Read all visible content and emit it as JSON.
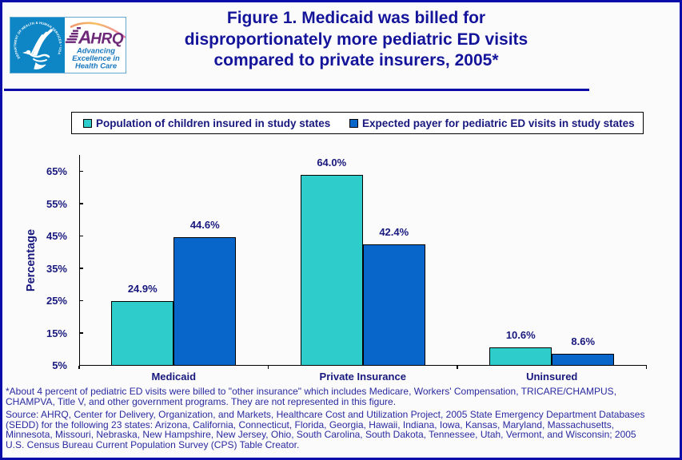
{
  "page": {
    "background": "#fbfbfb",
    "border_color": "#0b0baa",
    "text_navy": "#18187e"
  },
  "header": {
    "title_lines": [
      "Figure 1. Medicaid was billed for",
      "disproportionately more pediatric ED visits",
      "compared to private insurers, 2005*"
    ],
    "logo": {
      "seal_ring_text": "DEPARTMENT OF HEALTH & HUMAN SERVICES • USA",
      "acronym": "AHRQ",
      "tagline_lines": [
        "Advancing",
        "Excellence in",
        "Health Care"
      ],
      "seal_blue": "#0e86c6",
      "acronym_purple": "#6e2878",
      "tagline_blue": "#1777bd"
    }
  },
  "legend": {
    "items": [
      {
        "label": "Population of children insured in study states",
        "color": "#2fcccc"
      },
      {
        "label": "Expected payer for pediatric ED visits in study states",
        "color": "#0866cb"
      }
    ]
  },
  "chart_data": {
    "type": "bar",
    "title": "Figure 1. Medicaid was billed for disproportionately more pediatric ED visits compared to private insurers, 2005*",
    "categories": [
      "Medicaid",
      "Private Insurance",
      "Uninsured"
    ],
    "series": [
      {
        "name": "Population of children insured in study states",
        "color": "#2fcccc",
        "values": [
          24.9,
          64.0,
          10.6
        ]
      },
      {
        "name": "Expected payer for pediatric ED visits in study states",
        "color": "#0866cb",
        "values": [
          44.6,
          42.4,
          8.6
        ]
      }
    ],
    "value_label_format": "percent_one_decimal",
    "xlabel": "",
    "ylabel": "Percentage",
    "ylim": [
      5,
      70
    ],
    "y_tick_values": [
      5,
      15,
      25,
      35,
      45,
      55,
      65
    ],
    "y_tick_labels": [
      "5%",
      "15%",
      "25%",
      "35%",
      "45%",
      "55%",
      "65%"
    ],
    "grid": false,
    "legend_position": "top"
  },
  "footnote_lines": [
    "*About 4 percent of pediatric ED visits were billed to \"other insurance\" which includes Medicare, Workers' Compensation, TRICARE/CHAMPUS,",
    "CHAMPVA, Title V, and other government programs. They are not represented in this figure."
  ],
  "source_lines": [
    "Source: AHRQ, Center for Delivery, Organization, and Markets, Healthcare Cost and Utilization Project, 2005 State Emergency Department Databases",
    "(SEDD) for the following 23 states: Arizona, California, Connecticut, Florida, Georgia, Hawaii, Indiana, Iowa, Kansas, Maryland, Massachusetts,",
    "Minnesota, Missouri, Nebraska, New Hampshire, New Jersey, Ohio, South Carolina, South Dakota, Tennessee, Utah, Vermont, and Wisconsin; 2005",
    "U.S. Census Bureau Current Population Survey (CPS) Table Creator."
  ]
}
